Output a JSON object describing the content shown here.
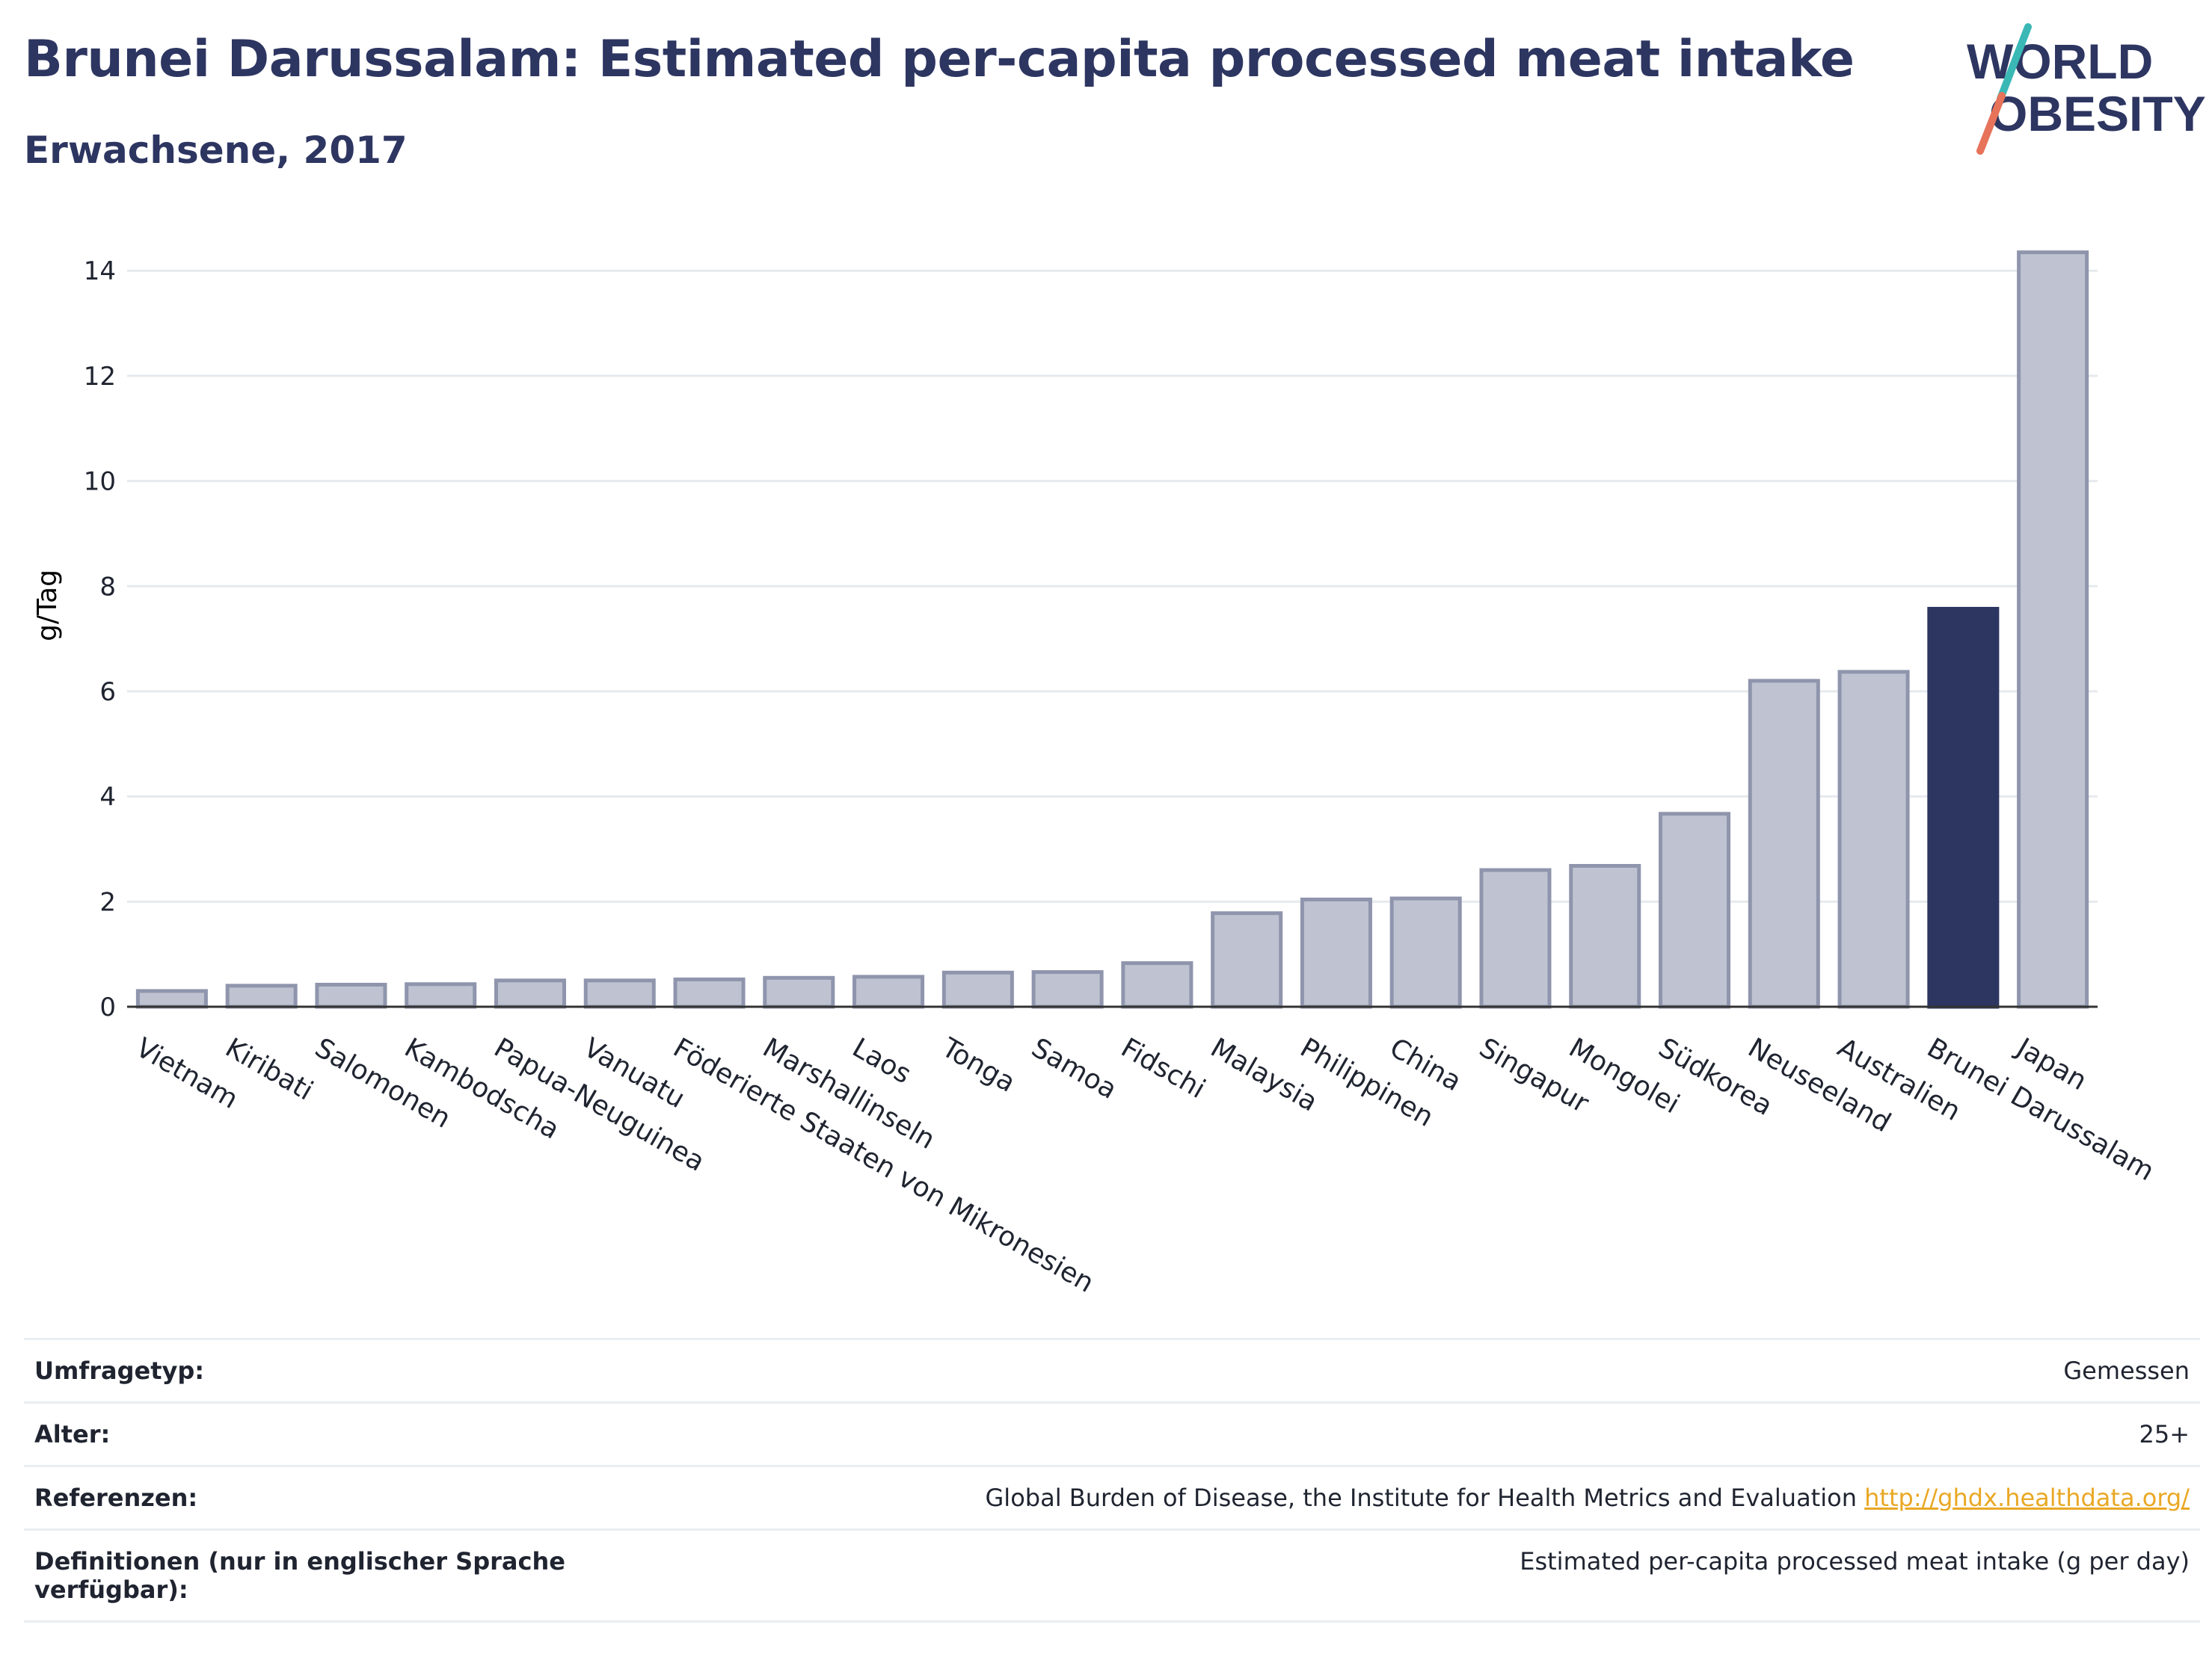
{
  "header": {
    "title": "Brunei Darussalam: Estimated per-capita processed meat intake",
    "subtitle": "Erwachsene, 2017"
  },
  "logo": {
    "line1": "WORLD",
    "line2": "OBESITY",
    "mark_colors": [
      "#3ab8b6",
      "#e6735a"
    ]
  },
  "colors": {
    "bar": "#bfc3d1",
    "bar_stroke": "#8f95ac",
    "highlight": "#2d3561",
    "grid": "#e6eaee",
    "axis": "#333333",
    "text": "#1f2430",
    "link": "#e9a825"
  },
  "chart_data": {
    "type": "bar",
    "ylabel": "g/Tag",
    "xlabel": "",
    "ylim": [
      0,
      14.6
    ],
    "yticks": [
      0,
      2,
      4,
      6,
      8,
      10,
      12,
      14
    ],
    "grid": true,
    "highlight": "Brunei Darussalam",
    "categories": [
      "Vietnam",
      "Kiribati",
      "Salomonen",
      "Kambodscha",
      "Papua-Neuguinea",
      "Vanuatu",
      "Föderierte Staaten von Mikronesien",
      "Marshallinseln",
      "Laos",
      "Tonga",
      "Samoa",
      "Fidschi",
      "Malaysia",
      "Philippinen",
      "China",
      "Singapur",
      "Mongolei",
      "Südkorea",
      "Neuseeland",
      "Australien",
      "Brunei Darussalam",
      "Japan"
    ],
    "values": [
      0.3,
      0.4,
      0.42,
      0.43,
      0.5,
      0.5,
      0.52,
      0.55,
      0.57,
      0.65,
      0.66,
      0.83,
      1.78,
      2.04,
      2.06,
      2.6,
      2.68,
      3.67,
      6.2,
      6.37,
      7.57,
      14.35
    ]
  },
  "info": [
    {
      "label": "Umfragetyp:",
      "value": "Gemessen",
      "link": ""
    },
    {
      "label": "Alter:",
      "value": "25+",
      "link": ""
    },
    {
      "label": "Referenzen:",
      "value": "Global Burden of Disease, the Institute for Health Metrics and Evaluation",
      "link": "http://ghdx.healthdata.org/"
    },
    {
      "label": "Definitionen (nur in englischer Sprache verfügbar):",
      "value": "Estimated per-capita processed meat intake (g per day)",
      "link": ""
    }
  ]
}
